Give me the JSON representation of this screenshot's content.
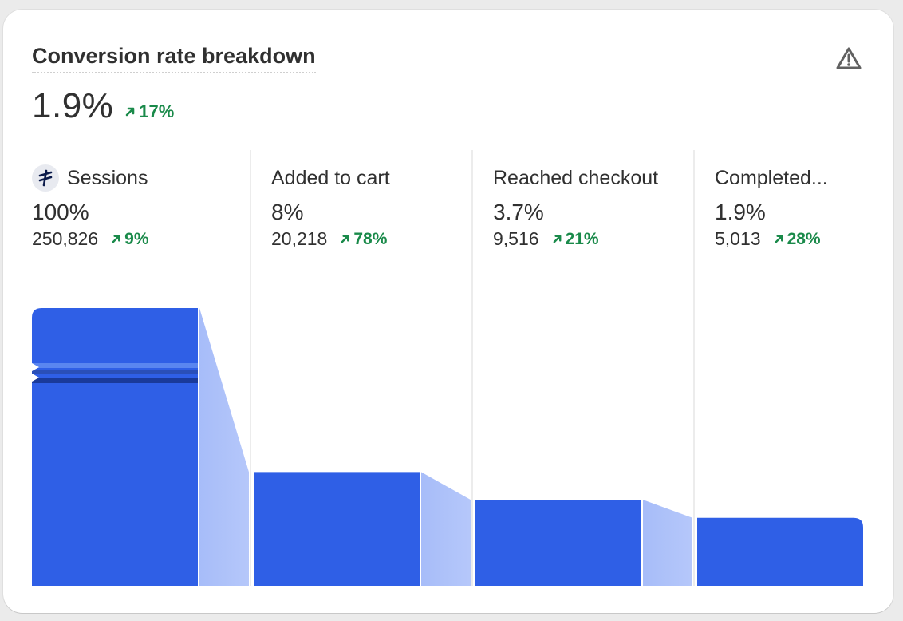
{
  "card": {
    "title": "Conversion rate breakdown",
    "value": "1.9%",
    "change": "17%"
  },
  "icons": {
    "warning": "warning-triangle-icon",
    "channel": "traffic-source-icon",
    "trend_up": "arrow-up-right-icon"
  },
  "colors": {
    "bar": "#2f5fe6",
    "connector": "#9db5f8",
    "positive": "#1a8a4a",
    "text": "#303030"
  },
  "chart_data": {
    "type": "bar",
    "categories": [
      "Sessions",
      "Added to cart",
      "Reached checkout",
      "Completed..."
    ],
    "percentages": [
      "100%",
      "8%",
      "3.7%",
      "1.9%"
    ],
    "counts": [
      "250,826",
      "20,218",
      "9,516",
      "5,013"
    ],
    "changes": [
      "9%",
      "78%",
      "21%",
      "28%"
    ],
    "values": [
      250826,
      20218,
      9516,
      5013
    ],
    "bar_levels": [
      1.0,
      0.41,
      0.31,
      0.245
    ]
  }
}
